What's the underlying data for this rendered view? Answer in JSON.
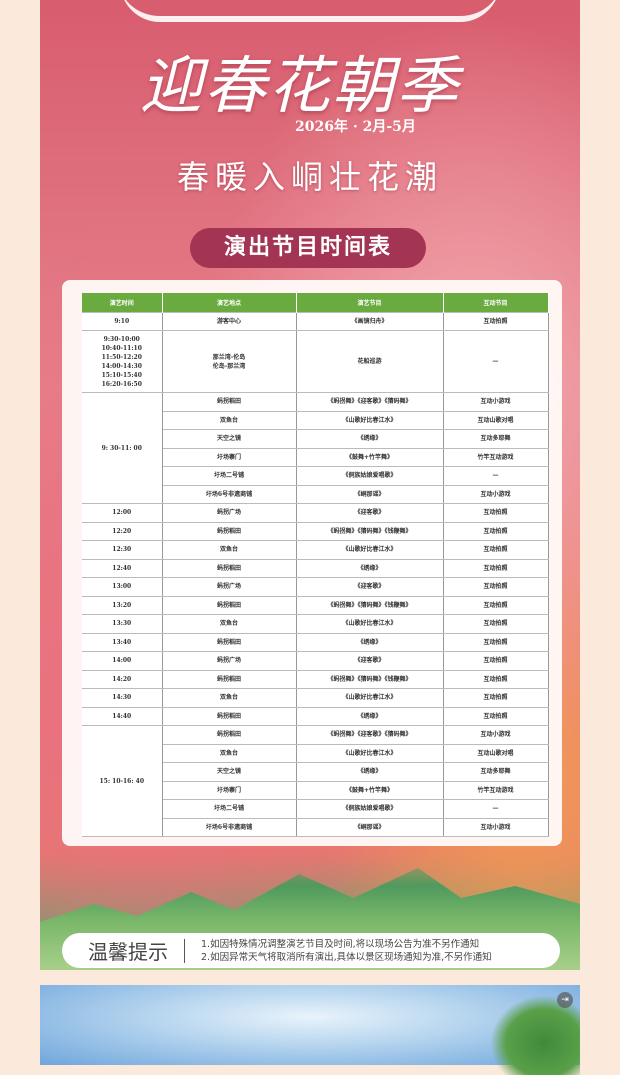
{
  "poster": {
    "main_title": "迎春花朝季",
    "date": "2026年 · 2月-5月",
    "subtitle": "春暖入峒壮花潮",
    "schedule_title": "演出节目时间表",
    "colors": {
      "header_green": "#6aab40",
      "pill": "#a33453"
    }
  },
  "table": {
    "headers": [
      "演艺时间",
      "演艺地点",
      "演艺节目",
      "互动节目"
    ],
    "rows": [
      {
        "time": "9:10",
        "items": [
          [
            "游客中心",
            "《画镜归舟》",
            "互动拍照"
          ]
        ]
      },
      {
        "time": "9:30-10:00\n10:40-11:10\n11:50-12:20\n14:00-14:30\n15:10-15:40\n16:20-16:50",
        "tall": true,
        "items": [
          [
            "那兰湾-伦岛\n伦岛-那兰湾",
            "花船巡游",
            "—"
          ]
        ]
      },
      {
        "time": "9: 30-11: 00",
        "items": [
          [
            "蚂拐稻田",
            "《蚂拐舞》《迎客歌》《猜码舞》",
            "互动小游戏"
          ],
          [
            "双鱼台",
            "《山歌好比春江水》",
            "互动山歌对唱"
          ],
          [
            "天空之镜",
            "《绣缘》",
            "互动多耶舞"
          ],
          [
            "圩场寨门",
            "《鼓舞+竹竿舞》",
            "竹竿互动游戏"
          ],
          [
            "圩场二号铺",
            "《侗族姑娘爱唱歌》",
            "—"
          ],
          [
            "圩场6号非遗商铺",
            "《峒那谣》",
            "互动小游戏"
          ]
        ]
      },
      {
        "time": "12:00",
        "items": [
          [
            "蚂拐广场",
            "《迎客歌》",
            "互动拍照"
          ]
        ]
      },
      {
        "time": "12:20",
        "items": [
          [
            "蚂拐稻田",
            "《蚂拐舞》《猜码舞》《钱鞭舞》",
            "互动拍照"
          ]
        ]
      },
      {
        "time": "12:30",
        "items": [
          [
            "双鱼台",
            "《山歌好比春江水》",
            "互动拍照"
          ]
        ]
      },
      {
        "time": "12:40",
        "items": [
          [
            "蚂拐稻田",
            "《绣缘》",
            "互动拍照"
          ]
        ]
      },
      {
        "time": "13:00",
        "items": [
          [
            "蚂拐广场",
            "《迎客歌》",
            "互动拍照"
          ]
        ]
      },
      {
        "time": "13:20",
        "items": [
          [
            "蚂拐稻田",
            "《蚂拐舞》《猜码舞》《钱鞭舞》",
            "互动拍照"
          ]
        ]
      },
      {
        "time": "13:30",
        "items": [
          [
            "双鱼台",
            "《山歌好比春江水》",
            "互动拍照"
          ]
        ]
      },
      {
        "time": "13:40",
        "items": [
          [
            "蚂拐稻田",
            "《绣缘》",
            "互动拍照"
          ]
        ]
      },
      {
        "time": "14:00",
        "items": [
          [
            "蚂拐广场",
            "《迎客歌》",
            "互动拍照"
          ]
        ]
      },
      {
        "time": "14:20",
        "items": [
          [
            "蚂拐稻田",
            "《蚂拐舞》《猜码舞》《钱鞭舞》",
            "互动拍照"
          ]
        ]
      },
      {
        "time": "14:30",
        "items": [
          [
            "双鱼台",
            "《山歌好比春江水》",
            "互动拍照"
          ]
        ]
      },
      {
        "time": "14:40",
        "items": [
          [
            "蚂拐稻田",
            "《绣缘》",
            "互动拍照"
          ]
        ]
      },
      {
        "time": "15: 10-16: 40",
        "items": [
          [
            "蚂拐稻田",
            "《蚂拐舞》《迎客歌》《猜码舞》",
            "互动小游戏"
          ],
          [
            "双鱼台",
            "《山歌好比春江水》",
            "互动山歌对唱"
          ],
          [
            "天空之镜",
            "《绣缘》",
            "互动多耶舞"
          ],
          [
            "圩场寨门",
            "《鼓舞+竹竿舞》",
            "竹竿互动游戏"
          ],
          [
            "圩场二号铺",
            "《侗族姑娘爱唱歌》",
            "—"
          ],
          [
            "圩场6号非遗商铺",
            "《峒那谣》",
            "互动小游戏"
          ]
        ]
      }
    ]
  },
  "tips": {
    "title": "温馨提示",
    "lines": [
      "1.如因特殊情况调整演艺节目及时间,将以现场公告为准不另作通知",
      "2.如因异常天气将取消所有演出,具体以景区现场通知为准,不另作通知"
    ]
  },
  "icons": {
    "exit": "exit-fullscreen-icon"
  }
}
